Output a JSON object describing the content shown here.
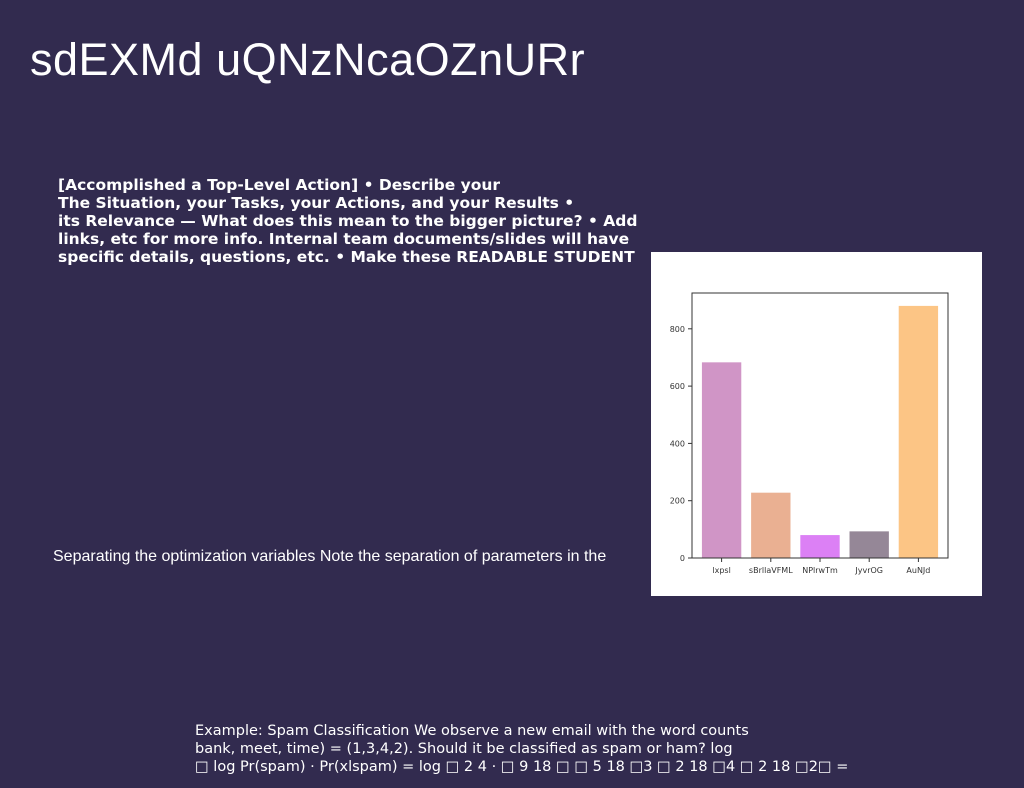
{
  "slide": {
    "title": "sdEXMd uQNzNcaOZnURr",
    "bullet_lines": [
      "[Accomplished a Top-Level Action] • Describe your",
      "The Situation, your Tasks, your Actions, and your Results •",
      "its Relevance — What does this mean to the bigger picture? • Add",
      "links, etc for more info. Internal team documents/slides will have",
      "specific details, questions, etc. • Make these READABLE STUDENT"
    ],
    "separating_text": "Separating the optimization variables Note the separation of parameters in the",
    "example_lines": [
      "Example: Spam Classification We observe a new email with the word counts",
      "bank, meet, time) = (1,3,4,2). Should it be classified as spam or ham? log",
      "□ log Pr(spam) · Pr(xlspam) = log □ 2 4 · □ 9 18 □ □ 5 18 □3 □ 2 18 □4 □ 2 18 □2□ ="
    ]
  },
  "chart_data": {
    "type": "bar",
    "categories": [
      "lxpsl",
      "sBrllaVFML",
      "NPlrwTm",
      "JyvrOG",
      "AuNJd"
    ],
    "values": [
      683,
      228,
      80,
      93,
      880
    ],
    "colors": [
      "#d095c6",
      "#eab092",
      "#dc80f5",
      "#958797",
      "#fcc585"
    ],
    "ylim": [
      0,
      925
    ],
    "yticks": [
      0,
      200,
      400,
      600,
      800
    ],
    "title": "",
    "xlabel": "",
    "ylabel": "",
    "grid": false
  }
}
